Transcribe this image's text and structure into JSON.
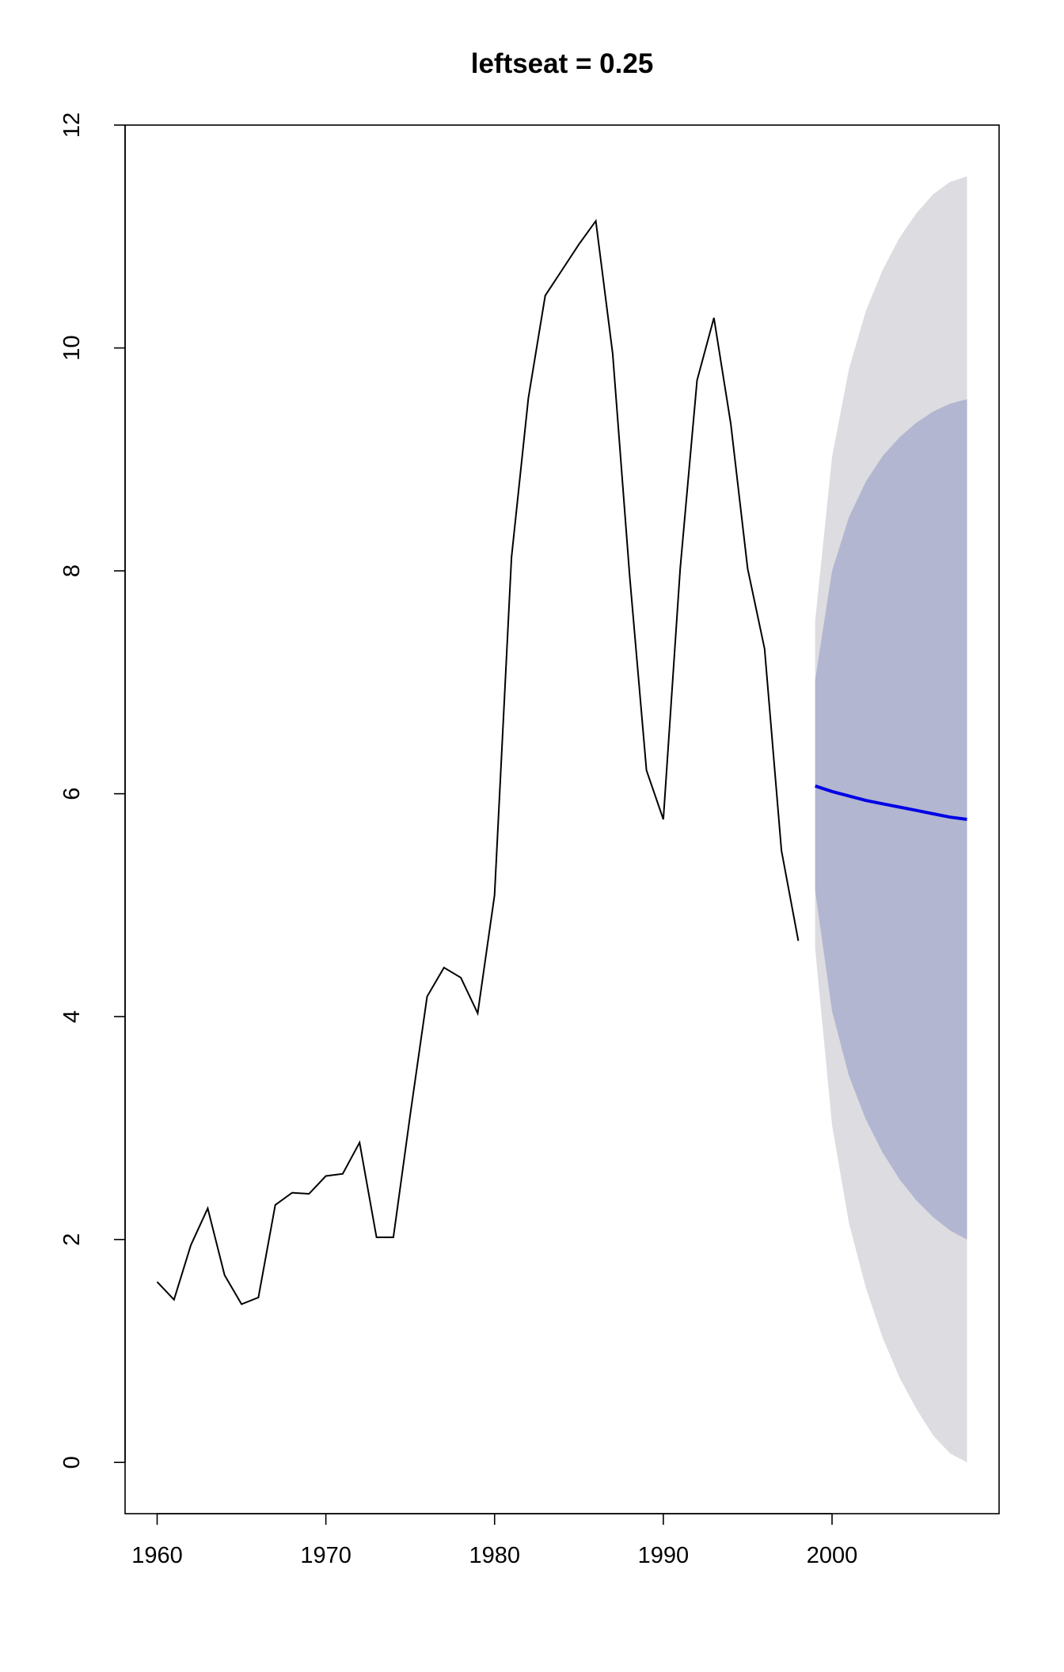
{
  "chart_data": {
    "type": "line",
    "title": "leftseat = 0.25",
    "xlabel": "",
    "ylabel": "",
    "xlim": [
      1958.1,
      2009.9
    ],
    "ylim": [
      -0.46,
      12.0
    ],
    "x_ticks": [
      1960,
      1970,
      1980,
      1990,
      2000
    ],
    "y_ticks": [
      0,
      2,
      4,
      6,
      8,
      10,
      12
    ],
    "grid": false,
    "legend": "none",
    "colors": {
      "history": "#000000",
      "forecast": "#0000e6",
      "band_95": "#dcdce1",
      "band_80": "#b2b6d0"
    },
    "series": [
      {
        "role": "history",
        "x": [
          1960,
          1961,
          1962,
          1963,
          1964,
          1965,
          1966,
          1967,
          1968,
          1969,
          1970,
          1971,
          1972,
          1973,
          1974,
          1975,
          1976,
          1977,
          1978,
          1979,
          1980,
          1981,
          1982,
          1983,
          1984,
          1985,
          1986,
          1987,
          1988,
          1989,
          1990,
          1991,
          1992,
          1993,
          1994,
          1995,
          1996,
          1997,
          1998
        ],
        "values": [
          1.62,
          1.46,
          1.95,
          2.28,
          1.68,
          1.42,
          1.48,
          2.31,
          2.42,
          2.41,
          2.57,
          2.59,
          2.87,
          2.02,
          2.02,
          3.12,
          4.18,
          4.44,
          4.35,
          4.03,
          5.09,
          8.12,
          9.55,
          10.47,
          10.7,
          10.93,
          11.14,
          9.95,
          7.96,
          6.21,
          5.77,
          8.02,
          9.71,
          10.27,
          9.32,
          8.02,
          7.3,
          5.49,
          4.68
        ]
      },
      {
        "role": "forecast",
        "x": [
          1999,
          2000,
          2001,
          2002,
          2003,
          2004,
          2005,
          2006,
          2007,
          2008
        ],
        "values": [
          6.07,
          6.02,
          5.98,
          5.94,
          5.91,
          5.88,
          5.85,
          5.82,
          5.79,
          5.77
        ],
        "lower80": [
          5.13,
          4.05,
          3.47,
          3.08,
          2.78,
          2.54,
          2.35,
          2.2,
          2.08,
          2.0
        ],
        "upper80": [
          7.02,
          8.0,
          8.48,
          8.8,
          9.03,
          9.2,
          9.33,
          9.43,
          9.5,
          9.54
        ],
        "lower95": [
          4.61,
          3.03,
          2.15,
          1.57,
          1.12,
          0.76,
          0.48,
          0.24,
          0.08,
          0.0
        ],
        "upper95": [
          7.55,
          9.02,
          9.81,
          10.33,
          10.7,
          10.99,
          11.21,
          11.38,
          11.49,
          11.54
        ]
      }
    ]
  }
}
